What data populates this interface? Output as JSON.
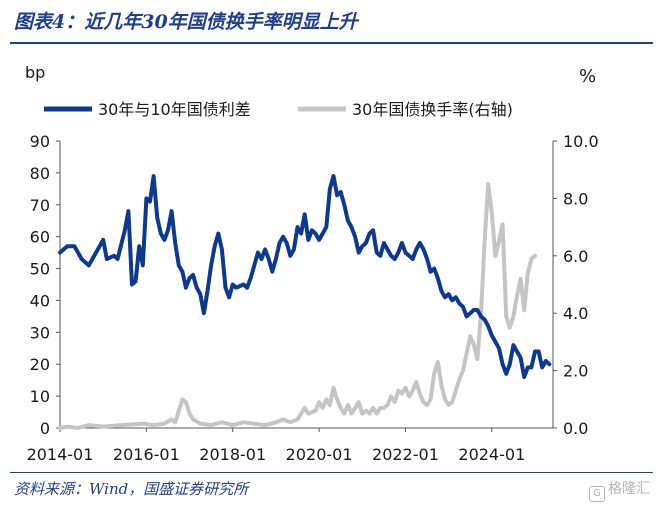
{
  "header": {
    "title": "图表4：近几年30年国债换手率明显上升"
  },
  "footer": {
    "source": "资料来源：Wind，国盛证券研究所",
    "watermark": "格隆汇"
  },
  "colors": {
    "accent": "#1e3f8f",
    "spread": "#0d3a8e",
    "turnover": "#c4c4c4"
  },
  "icons": {
    "watermark": "gelonghui-logo-icon"
  },
  "chart_data": {
    "type": "line",
    "left_unit": "bp",
    "right_unit": "%",
    "legend_position": "top-left",
    "grid": false,
    "x_ticks": [
      "2014-01",
      "2016-01",
      "2018-01",
      "2020-01",
      "2022-01",
      "2024-01"
    ],
    "xlim": [
      "2014-01",
      "2025-06"
    ],
    "left_axis": {
      "ylim": [
        0,
        90
      ],
      "ticks": [
        "0",
        "10",
        "20",
        "30",
        "40",
        "50",
        "60",
        "70",
        "80",
        "90"
      ]
    },
    "right_axis": {
      "ylim": [
        0,
        10
      ],
      "ticks": [
        "0.0",
        "2.0",
        "4.0",
        "6.0",
        "8.0",
        "10.0"
      ]
    },
    "series": [
      {
        "name": "30年与10年国债利差",
        "axis": "left",
        "points": [
          [
            "2014-01",
            55
          ],
          [
            "2014-03",
            57
          ],
          [
            "2014-05",
            57
          ],
          [
            "2014-07",
            53
          ],
          [
            "2014-09",
            51
          ],
          [
            "2014-11",
            55
          ],
          [
            "2015-01",
            59
          ],
          [
            "2015-02",
            53
          ],
          [
            "2015-04",
            54
          ],
          [
            "2015-05",
            53
          ],
          [
            "2015-07",
            62
          ],
          [
            "2015-08",
            68
          ],
          [
            "2015-09",
            45
          ],
          [
            "2015-10",
            46
          ],
          [
            "2015-11",
            57
          ],
          [
            "2015-12",
            51
          ],
          [
            "2016-01",
            72
          ],
          [
            "2016-02",
            71
          ],
          [
            "2016-03",
            79
          ],
          [
            "2016-04",
            66
          ],
          [
            "2016-05",
            61
          ],
          [
            "2016-06",
            59
          ],
          [
            "2016-07",
            62
          ],
          [
            "2016-08",
            68
          ],
          [
            "2016-09",
            58
          ],
          [
            "2016-10",
            51
          ],
          [
            "2016-11",
            49
          ],
          [
            "2016-12",
            44
          ],
          [
            "2017-01",
            47
          ],
          [
            "2017-02",
            48
          ],
          [
            "2017-03",
            44
          ],
          [
            "2017-04",
            42
          ],
          [
            "2017-05",
            36
          ],
          [
            "2017-06",
            43
          ],
          [
            "2017-07",
            51
          ],
          [
            "2017-08",
            57
          ],
          [
            "2017-09",
            61
          ],
          [
            "2017-10",
            56
          ],
          [
            "2017-11",
            44
          ],
          [
            "2017-12",
            41
          ],
          [
            "2018-01",
            45
          ],
          [
            "2018-02",
            44
          ],
          [
            "2018-04",
            45
          ],
          [
            "2018-05",
            44
          ],
          [
            "2018-06",
            47
          ],
          [
            "2018-07",
            51
          ],
          [
            "2018-08",
            55
          ],
          [
            "2018-09",
            53
          ],
          [
            "2018-10",
            56
          ],
          [
            "2018-11",
            53
          ],
          [
            "2018-12",
            49
          ],
          [
            "2019-01",
            53
          ],
          [
            "2019-02",
            58
          ],
          [
            "2019-03",
            60
          ],
          [
            "2019-04",
            58
          ],
          [
            "2019-05",
            54
          ],
          [
            "2019-06",
            56
          ],
          [
            "2019-07",
            63
          ],
          [
            "2019-08",
            61
          ],
          [
            "2019-09",
            67
          ],
          [
            "2019-10",
            59
          ],
          [
            "2019-11",
            62
          ],
          [
            "2019-12",
            61
          ],
          [
            "2020-01",
            59
          ],
          [
            "2020-02",
            61
          ],
          [
            "2020-03",
            63
          ],
          [
            "2020-04",
            75
          ],
          [
            "2020-05",
            79
          ],
          [
            "2020-06",
            73
          ],
          [
            "2020-07",
            74
          ],
          [
            "2020-08",
            70
          ],
          [
            "2020-09",
            65
          ],
          [
            "2020-10",
            63
          ],
          [
            "2020-11",
            60
          ],
          [
            "2020-12",
            55
          ],
          [
            "2021-01",
            57
          ],
          [
            "2021-02",
            58
          ],
          [
            "2021-03",
            61
          ],
          [
            "2021-04",
            62
          ],
          [
            "2021-05",
            55
          ],
          [
            "2021-06",
            54
          ],
          [
            "2021-07",
            58
          ],
          [
            "2021-08",
            56
          ],
          [
            "2021-09",
            54
          ],
          [
            "2021-10",
            53
          ],
          [
            "2021-11",
            55
          ],
          [
            "2021-12",
            58
          ],
          [
            "2022-01",
            55
          ],
          [
            "2022-02",
            54
          ],
          [
            "2022-03",
            53
          ],
          [
            "2022-04",
            56
          ],
          [
            "2022-05",
            58
          ],
          [
            "2022-06",
            56
          ],
          [
            "2022-07",
            53
          ],
          [
            "2022-08",
            49
          ],
          [
            "2022-09",
            50
          ],
          [
            "2022-10",
            47
          ],
          [
            "2022-11",
            43
          ],
          [
            "2022-12",
            41
          ],
          [
            "2023-01",
            42
          ],
          [
            "2023-02",
            40
          ],
          [
            "2023-03",
            41
          ],
          [
            "2023-04",
            39
          ],
          [
            "2023-05",
            38
          ],
          [
            "2023-06",
            35
          ],
          [
            "2023-07",
            36
          ],
          [
            "2023-08",
            37
          ],
          [
            "2023-09",
            37
          ],
          [
            "2023-10",
            35
          ],
          [
            "2023-11",
            34
          ],
          [
            "2023-12",
            32
          ],
          [
            "2024-01",
            29
          ],
          [
            "2024-02",
            27
          ],
          [
            "2024-03",
            25
          ],
          [
            "2024-04",
            20
          ],
          [
            "2024-05",
            17
          ],
          [
            "2024-06",
            20
          ],
          [
            "2024-07",
            26
          ],
          [
            "2024-08",
            24
          ],
          [
            "2024-09",
            22
          ],
          [
            "2024-10",
            16
          ],
          [
            "2024-11",
            19
          ],
          [
            "2024-12",
            19
          ],
          [
            "2025-01",
            24
          ],
          [
            "2025-02",
            24
          ],
          [
            "2025-03",
            19
          ],
          [
            "2025-04",
            21
          ],
          [
            "2025-05",
            20
          ]
        ]
      },
      {
        "name": "30年国债换手率(右轴)",
        "axis": "right",
        "points": [
          [
            "2014-01",
            0.0
          ],
          [
            "2014-03",
            0.05
          ],
          [
            "2014-06",
            0.0
          ],
          [
            "2014-09",
            0.1
          ],
          [
            "2015-01",
            0.05
          ],
          [
            "2015-06",
            0.1
          ],
          [
            "2015-12",
            0.15
          ],
          [
            "2016-03",
            0.1
          ],
          [
            "2016-06",
            0.15
          ],
          [
            "2016-08",
            0.3
          ],
          [
            "2016-09",
            0.2
          ],
          [
            "2016-10",
            0.6
          ],
          [
            "2016-11",
            1.0
          ],
          [
            "2016-12",
            0.9
          ],
          [
            "2017-01",
            0.5
          ],
          [
            "2017-02",
            0.3
          ],
          [
            "2017-04",
            0.15
          ],
          [
            "2017-07",
            0.1
          ],
          [
            "2017-10",
            0.2
          ],
          [
            "2018-01",
            0.1
          ],
          [
            "2018-04",
            0.2
          ],
          [
            "2018-07",
            0.15
          ],
          [
            "2018-10",
            0.1
          ],
          [
            "2019-01",
            0.2
          ],
          [
            "2019-03",
            0.3
          ],
          [
            "2019-05",
            0.2
          ],
          [
            "2019-07",
            0.3
          ],
          [
            "2019-09",
            0.7
          ],
          [
            "2019-10",
            0.5
          ],
          [
            "2019-12",
            0.6
          ],
          [
            "2020-01",
            0.9
          ],
          [
            "2020-02",
            0.7
          ],
          [
            "2020-03",
            1.0
          ],
          [
            "2020-04",
            0.8
          ],
          [
            "2020-05",
            1.4
          ],
          [
            "2020-06",
            1.0
          ],
          [
            "2020-07",
            0.7
          ],
          [
            "2020-08",
            0.5
          ],
          [
            "2020-09",
            0.8
          ],
          [
            "2020-10",
            0.5
          ],
          [
            "2020-11",
            0.7
          ],
          [
            "2020-12",
            0.9
          ],
          [
            "2021-01",
            0.5
          ],
          [
            "2021-02",
            0.6
          ],
          [
            "2021-03",
            0.5
          ],
          [
            "2021-04",
            0.7
          ],
          [
            "2021-05",
            0.5
          ],
          [
            "2021-06",
            0.7
          ],
          [
            "2021-07",
            0.7
          ],
          [
            "2021-08",
            0.8
          ],
          [
            "2021-09",
            1.1
          ],
          [
            "2021-10",
            0.9
          ],
          [
            "2021-11",
            1.3
          ],
          [
            "2021-12",
            1.2
          ],
          [
            "2022-01",
            1.4
          ],
          [
            "2022-02",
            1.1
          ],
          [
            "2022-03",
            1.3
          ],
          [
            "2022-04",
            1.6
          ],
          [
            "2022-05",
            1.2
          ],
          [
            "2022-06",
            0.9
          ],
          [
            "2022-07",
            0.8
          ],
          [
            "2022-08",
            1.0
          ],
          [
            "2022-09",
            1.9
          ],
          [
            "2022-10",
            2.3
          ],
          [
            "2022-11",
            1.5
          ],
          [
            "2022-12",
            1.0
          ],
          [
            "2023-01",
            0.8
          ],
          [
            "2023-02",
            0.9
          ],
          [
            "2023-03",
            1.3
          ],
          [
            "2023-04",
            1.7
          ],
          [
            "2023-05",
            2.0
          ],
          [
            "2023-06",
            2.6
          ],
          [
            "2023-07",
            3.2
          ],
          [
            "2023-08",
            2.9
          ],
          [
            "2023-09",
            2.4
          ],
          [
            "2023-10",
            4.0
          ],
          [
            "2023-11",
            6.5
          ],
          [
            "2023-12",
            8.5
          ],
          [
            "2024-01",
            7.5
          ],
          [
            "2024-02",
            6.0
          ],
          [
            "2024-03",
            6.5
          ],
          [
            "2024-04",
            7.1
          ],
          [
            "2024-05",
            3.9
          ],
          [
            "2024-06",
            3.5
          ],
          [
            "2024-07",
            3.9
          ],
          [
            "2024-08",
            4.6
          ],
          [
            "2024-09",
            5.2
          ],
          [
            "2024-10",
            4.1
          ],
          [
            "2024-11",
            5.4
          ],
          [
            "2024-12",
            5.9
          ],
          [
            "2025-01",
            6.0
          ]
        ]
      }
    ]
  }
}
